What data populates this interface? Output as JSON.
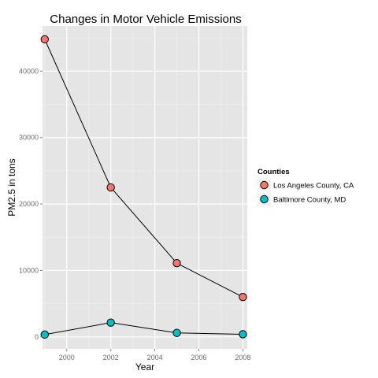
{
  "chart_data": {
    "type": "line",
    "title": "Changes in Motor Vehicle Emissions",
    "xlabel": "Year",
    "ylabel": "PM2.5 in tons",
    "x": [
      1999,
      2002,
      2005,
      2008
    ],
    "xlim": [
      1998.9,
      2008.2
    ],
    "ylim": [
      -1800,
      46800
    ],
    "x_ticks": [
      2000,
      2002,
      2004,
      2006,
      2008
    ],
    "y_ticks": [
      0,
      10000,
      20000,
      30000,
      40000
    ],
    "grid": true,
    "legend_position": "right",
    "legend_title": "Counties",
    "series": [
      {
        "name": "Los Angeles County, CA",
        "color": "#F8766D",
        "values": [
          44800,
          22500,
          11100,
          6000
        ]
      },
      {
        "name": "Baltimore County, MD",
        "color": "#00BFC4",
        "values": [
          350,
          2150,
          600,
          400
        ]
      }
    ]
  }
}
